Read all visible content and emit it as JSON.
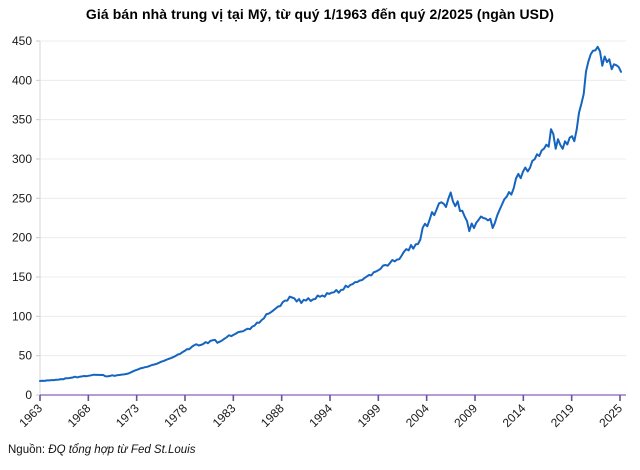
{
  "title": "Giá bán nhà trung vị tại Mỹ, từ quý 1/1963 đến quý 2/2025 (ngàn USD)",
  "source": {
    "prefix": "Nguồn: ",
    "text": "ĐQ tổng hợp từ Fed St.Louis"
  },
  "colors": {
    "line": "#1565c0",
    "x_axis": "#9d7bc6",
    "x_tick": "#6b4fa3",
    "y_axis": "#d6d6d6",
    "y_tick": "#c9c9c9",
    "gridline": "#ececec",
    "label": "#1a1a1a"
  },
  "chart_data": {
    "type": "line",
    "title": "Giá bán nhà trung vị tại Mỹ, từ quý 1/1963 đến quý 2/2025 (ngàn USD)",
    "xlabel": "",
    "ylabel": "",
    "ylim": [
      0,
      450
    ],
    "y_ticks": [
      0,
      50,
      100,
      150,
      200,
      250,
      300,
      350,
      400,
      450
    ],
    "x_tick_labels": [
      "1963",
      "1968",
      "1973",
      "1978",
      "1983",
      "1988",
      "1994",
      "1999",
      "2004",
      "2009",
      "2014",
      "2019",
      "2025"
    ],
    "frequency": "quarterly",
    "start_period": "1963 Q1",
    "end_period": "2025 Q2",
    "grid": "horizontal",
    "legend": "none",
    "unit": "thousand USD",
    "values": [
      17.8,
      18.0,
      17.9,
      18.5,
      18.5,
      18.9,
      19.0,
      19.4,
      19.6,
      20.2,
      20.0,
      21.4,
      21.2,
      21.7,
      22.3,
      23.3,
      22.4,
      23.3,
      23.7,
      24.1,
      23.9,
      24.5,
      25.1,
      25.8,
      25.6,
      25.5,
      25.4,
      25.6,
      23.9,
      23.6,
      24.3,
      25.0,
      24.3,
      25.2,
      25.4,
      25.9,
      26.2,
      26.7,
      27.4,
      28.9,
      30.2,
      31.5,
      32.5,
      33.8,
      34.4,
      35.3,
      35.9,
      37.0,
      38.1,
      38.8,
      39.6,
      40.9,
      42.3,
      43.4,
      44.6,
      45.8,
      46.8,
      48.0,
      49.5,
      51.4,
      52.3,
      54.3,
      56.0,
      58.3,
      58.2,
      61.2,
      63.0,
      64.6,
      62.9,
      63.7,
      65.0,
      67.3,
      65.9,
      68.6,
      69.7,
      70.1,
      66.4,
      67.8,
      69.3,
      71.5,
      73.3,
      75.9,
      74.9,
      76.6,
      78.2,
      79.9,
      80.6,
      81.0,
      82.8,
      84.3,
      83.6,
      87.0,
      88.3,
      92.0,
      91.9,
      95.4,
      97.5,
      102.7,
      103.5,
      105.2,
      107.5,
      110.0,
      112.5,
      113.0,
      118.0,
      120.0,
      120.0,
      125.0,
      123.9,
      122.9,
      118.9,
      122.0,
      117.0,
      121.0,
      120.0,
      123.0,
      119.5,
      121.5,
      122.0,
      126.5,
      125.0,
      126.5,
      125.0,
      129.5,
      128.5,
      130.0,
      130.5,
      133.5,
      130.0,
      133.5,
      134.0,
      139.0,
      137.0,
      140.0,
      141.0,
      143.5,
      143.5,
      145.5,
      146.0,
      148.5,
      150.5,
      152.5,
      152.0,
      156.0,
      157.0,
      158.5,
      160.5,
      164.5,
      165.3,
      164.4,
      167.8,
      171.6,
      169.8,
      172.1,
      172.6,
      177.3,
      182.1,
      185.5,
      183.9,
      190.6,
      186.0,
      191.4,
      191.9,
      197.5,
      212.7,
      217.6,
      214.5,
      223.1,
      232.5,
      228.7,
      236.1,
      243.6,
      244.9,
      243.2,
      239.0,
      249.1,
      257.4,
      245.8,
      240.0,
      246.2,
      233.9,
      234.3,
      226.8,
      221.0,
      208.4,
      218.0,
      212.2,
      219.0,
      222.9,
      226.9,
      225.0,
      224.3,
      222.0,
      224.0,
      212.3,
      219.1,
      228.6,
      235.7,
      242.1,
      248.8,
      252.1,
      257.9,
      254.7,
      262.7,
      275.2,
      281.1,
      275.6,
      283.9,
      289.2,
      284.2,
      288.8,
      297.6,
      299.8,
      306.0,
      303.8,
      310.9,
      313.1,
      318.2,
      315.6,
      337.9,
      331.8,
      313.0,
      325.2,
      317.9,
      313.0,
      322.5,
      318.4,
      327.1,
      329.0,
      322.6,
      337.5,
      358.7,
      369.8,
      382.6,
      411.2,
      423.6,
      433.1,
      437.7,
      438.0,
      442.6,
      436.8,
      418.5,
      430.3,
      423.2,
      426.8,
      414.2,
      420.4,
      419.2,
      416.9,
      410.8
    ]
  }
}
